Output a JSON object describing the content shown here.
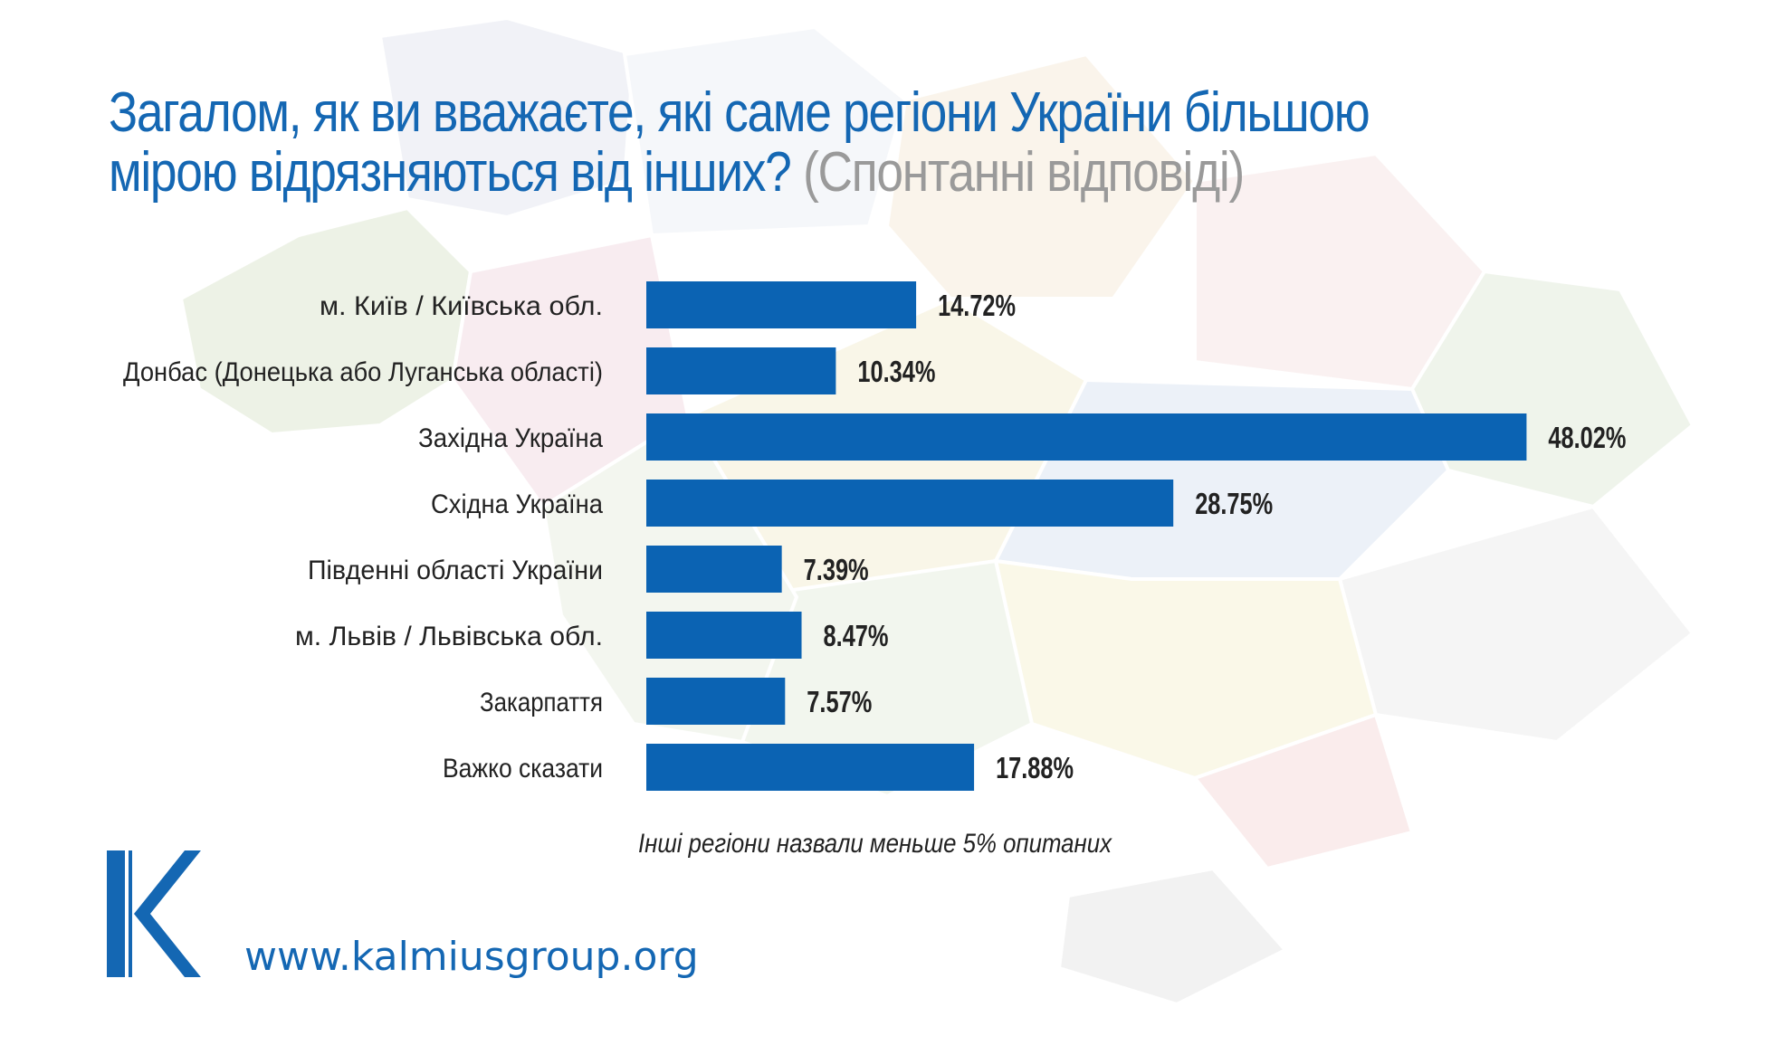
{
  "title": {
    "main": "Загалом, як ви вважаєте, які саме регіони України більшою мірою відрязняються від інших?",
    "subtitle": "(Спонтанні відповіді)"
  },
  "colors": {
    "bar": "#0b63b3",
    "title": "#1467b3",
    "subtitle": "#9a9a9a"
  },
  "chart_data": {
    "type": "bar",
    "orientation": "horizontal",
    "grid": false,
    "categories": [
      "м. Київ / Київська обл.",
      "Донбас (Донецька або Луганська області)",
      "Західна Україна",
      "Східна Україна",
      "Південні області України",
      "м. Львів / Львівська обл.",
      "Закарпаття",
      "Важко сказати"
    ],
    "values": [
      14.72,
      10.34,
      48.02,
      28.75,
      7.39,
      8.47,
      7.57,
      17.88
    ],
    "value_labels": [
      "14.72%",
      "10.34%",
      "48.02%",
      "28.75%",
      "7.39%",
      "8.47%",
      "7.57%",
      "17.88%"
    ],
    "note": "Інші регіони назвали меньше 5% опитаних"
  },
  "footer": {
    "website": "www.kalmiusgroup.org",
    "logo_icon": "kalmius-k-logo"
  }
}
